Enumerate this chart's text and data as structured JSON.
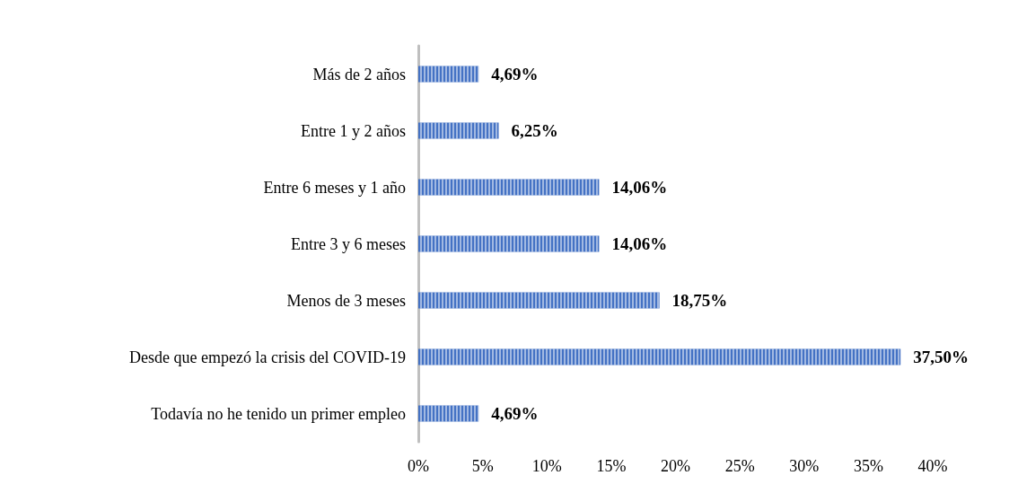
{
  "chart_data": {
    "type": "bar",
    "orientation": "horizontal",
    "categories": [
      "Más de 2 años",
      "Entre 1 y 2 años",
      "Entre 6 meses y 1 año",
      "Entre 3 y 6 meses",
      "Menos de 3 meses",
      "Desde que empezó la crisis del COVID-19",
      "Todavía no he tenido un primer empleo"
    ],
    "values": [
      4.69,
      6.25,
      14.06,
      14.06,
      18.75,
      37.5,
      4.69
    ],
    "value_labels": [
      "4,69%",
      "6,25%",
      "14,06%",
      "14,06%",
      "18,75%",
      "37,50%",
      "4,69%"
    ],
    "color": "#4472c4",
    "xlim": [
      0,
      40
    ],
    "xticks": [
      {
        "value": 0,
        "label": "0%"
      },
      {
        "value": 5,
        "label": "5%"
      },
      {
        "value": 10,
        "label": "10%"
      },
      {
        "value": 15,
        "label": "15%"
      },
      {
        "value": 20,
        "label": "20%"
      },
      {
        "value": 25,
        "label": "25%"
      },
      {
        "value": 30,
        "label": "30%"
      },
      {
        "value": 35,
        "label": "35%"
      },
      {
        "value": 40,
        "label": "40%"
      }
    ],
    "grid": false
  }
}
